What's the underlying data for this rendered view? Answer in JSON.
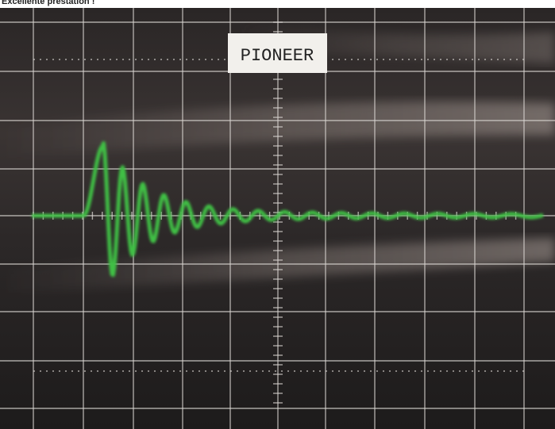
{
  "caption": "Excellente prestation !",
  "screen_label": "PIONEER"
}
